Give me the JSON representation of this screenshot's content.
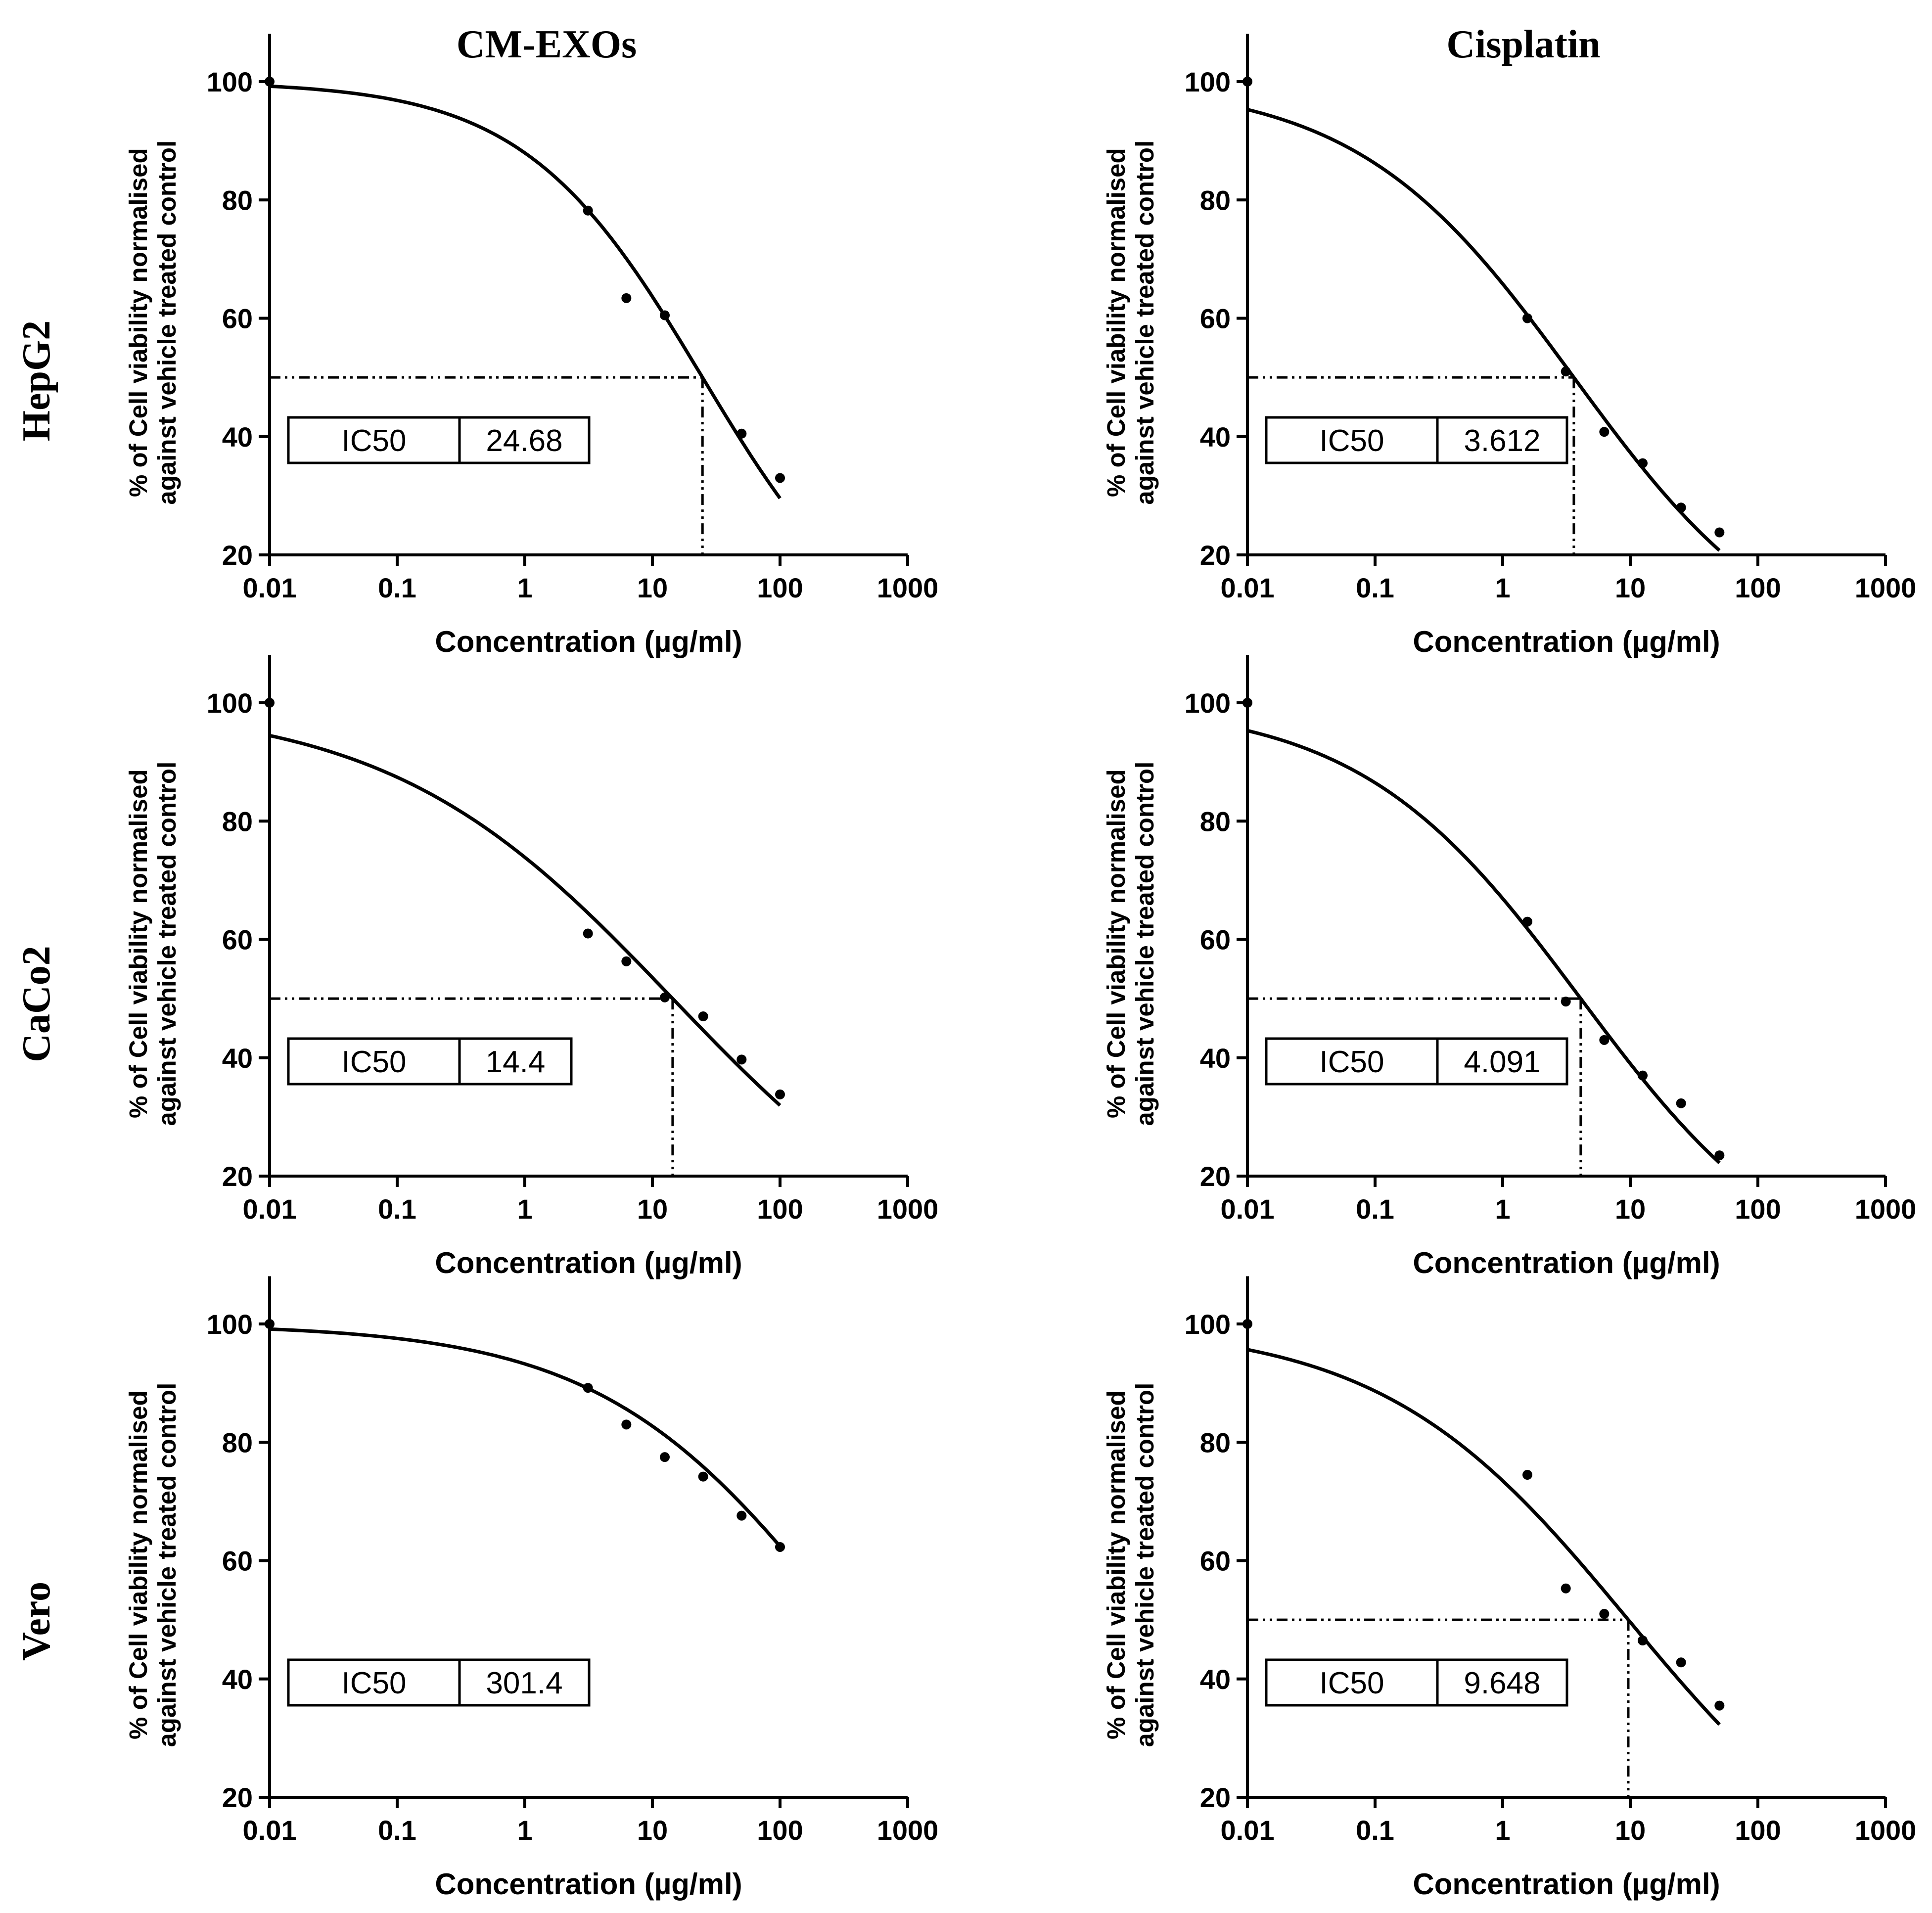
{
  "column_titles": [
    "CM-EXOs",
    "Cisplatin"
  ],
  "row_titles": [
    "HepG2",
    "CaCo2",
    "Vero"
  ],
  "x_axis_label": "Concentration (µg/ml)",
  "y_axis_label_line1": "% of Cell viability normalised",
  "y_axis_label_line2": "against vehicle treated control",
  "ic50_label": "IC50",
  "chart_data": [
    {
      "id": "hepg2-cmexos",
      "type": "scatter",
      "title": "CM-EXOs",
      "row": "HepG2",
      "xlabel": "Concentration (µg/ml)",
      "ylabel": "% of Cell viability normalised against vehicle treated control",
      "xscale": "log",
      "xlim": [
        0.01,
        1000
      ],
      "ylim": [
        20,
        110
      ],
      "xticks": [
        "0.01",
        "0.1",
        "1",
        "10",
        "100",
        "1000"
      ],
      "yticks": [
        20,
        40,
        60,
        80,
        100
      ],
      "x": [
        0.01,
        3.125,
        6.25,
        12.5,
        50,
        100
      ],
      "y": [
        100,
        78.2,
        63.4,
        60.5,
        40.5,
        33.0
      ],
      "fit": {
        "top": 100,
        "bottom": 0,
        "hill": 0.62
      },
      "ic50": "24.68",
      "ic50_value": 24.68,
      "show_ic50_lines": true,
      "fit_xmax": 100
    },
    {
      "id": "hepg2-cisplatin",
      "type": "scatter",
      "title": "Cisplatin",
      "row": "HepG2",
      "xlabel": "Concentration (µg/ml)",
      "ylabel": "% of Cell viability normalised against vehicle treated control",
      "xscale": "log",
      "xlim": [
        0.01,
        1000
      ],
      "ylim": [
        20,
        110
      ],
      "xticks": [
        "0.01",
        "0.1",
        "1",
        "10",
        "100",
        "1000"
      ],
      "yticks": [
        20,
        40,
        60,
        80,
        100
      ],
      "x": [
        0.01,
        1.5625,
        3.125,
        6.25,
        12.5,
        25,
        50
      ],
      "y": [
        100,
        60.0,
        51.0,
        40.8,
        35.5,
        28.0,
        23.8
      ],
      "fit": {
        "top": 100,
        "bottom": 0,
        "hill": 0.51
      },
      "ic50": "3.612",
      "ic50_value": 3.612,
      "show_ic50_lines": true,
      "fit_xmax": 50
    },
    {
      "id": "caco2-cmexos",
      "type": "scatter",
      "title": "CM-EXOs",
      "row": "CaCo2",
      "xlabel": "Concentration (µg/ml)",
      "ylabel": "% of Cell viability normalised against vehicle treated control",
      "xscale": "log",
      "xlim": [
        0.01,
        1000
      ],
      "ylim": [
        20,
        110
      ],
      "xticks": [
        "0.01",
        "0.1",
        "1",
        "10",
        "100",
        "1000"
      ],
      "yticks": [
        20,
        40,
        60,
        80,
        100
      ],
      "x": [
        0.01,
        3.125,
        6.25,
        12.5,
        25,
        50,
        100
      ],
      "y": [
        100,
        61.0,
        56.3,
        50.2,
        47.0,
        39.7,
        33.8
      ],
      "fit": {
        "top": 100,
        "bottom": 0,
        "hill": 0.39
      },
      "ic50": "14.4",
      "ic50_value": 14.4,
      "show_ic50_lines": true,
      "fit_xmax": 100
    },
    {
      "id": "caco2-cisplatin",
      "type": "scatter",
      "title": "Cisplatin",
      "row": "CaCo2",
      "xlabel": "Concentration (µg/ml)",
      "ylabel": "% of Cell viability normalised against vehicle treated control",
      "xscale": "log",
      "xlim": [
        0.01,
        1000
      ],
      "ylim": [
        20,
        110
      ],
      "xticks": [
        "0.01",
        "0.1",
        "1",
        "10",
        "100",
        "1000"
      ],
      "yticks": [
        20,
        40,
        60,
        80,
        100
      ],
      "x": [
        0.01,
        1.5625,
        3.125,
        6.25,
        12.5,
        25,
        50
      ],
      "y": [
        100,
        63.0,
        49.5,
        43.0,
        37.0,
        32.3,
        23.5
      ],
      "fit": {
        "top": 100,
        "bottom": 0,
        "hill": 0.5
      },
      "ic50": "4.091",
      "ic50_value": 4.091,
      "show_ic50_lines": true,
      "fit_xmax": 50
    },
    {
      "id": "vero-cmexos",
      "type": "scatter",
      "title": "CM-EXOs",
      "row": "Vero",
      "xlabel": "Concentration (µg/ml)",
      "ylabel": "% of Cell viability normalised against vehicle treated control",
      "xscale": "log",
      "xlim": [
        0.01,
        1000
      ],
      "ylim": [
        20,
        110
      ],
      "xticks": [
        "0.01",
        "0.1",
        "1",
        "10",
        "100",
        "1000"
      ],
      "yticks": [
        20,
        40,
        60,
        80,
        100
      ],
      "x": [
        0.01,
        3.125,
        6.25,
        12.5,
        25,
        50,
        100
      ],
      "y": [
        100,
        89.2,
        83.0,
        77.5,
        74.2,
        67.6,
        62.3
      ],
      "fit": {
        "top": 100,
        "bottom": 0,
        "hill": 0.46
      },
      "ic50": "301.4",
      "ic50_value": 301.4,
      "show_ic50_lines": false,
      "fit_xmax": 100
    },
    {
      "id": "vero-cisplatin",
      "type": "scatter",
      "title": "Cisplatin",
      "row": "Vero",
      "xlabel": "Concentration (µg/ml)",
      "ylabel": "% of Cell viability normalised against vehicle treated control",
      "xscale": "log",
      "xlim": [
        0.01,
        1000
      ],
      "ylim": [
        20,
        110
      ],
      "xticks": [
        "0.01",
        "0.1",
        "1",
        "10",
        "100",
        "1000"
      ],
      "yticks": [
        20,
        40,
        60,
        80,
        100
      ],
      "x": [
        0.01,
        1.5625,
        3.125,
        6.25,
        12.5,
        25,
        50
      ],
      "y": [
        100,
        74.5,
        55.3,
        51.0,
        46.5,
        42.8,
        35.5
      ],
      "fit": {
        "top": 100,
        "bottom": 0,
        "hill": 0.45
      },
      "ic50": "9.648",
      "ic50_value": 9.648,
      "show_ic50_lines": true,
      "fit_xmax": 50
    }
  ]
}
